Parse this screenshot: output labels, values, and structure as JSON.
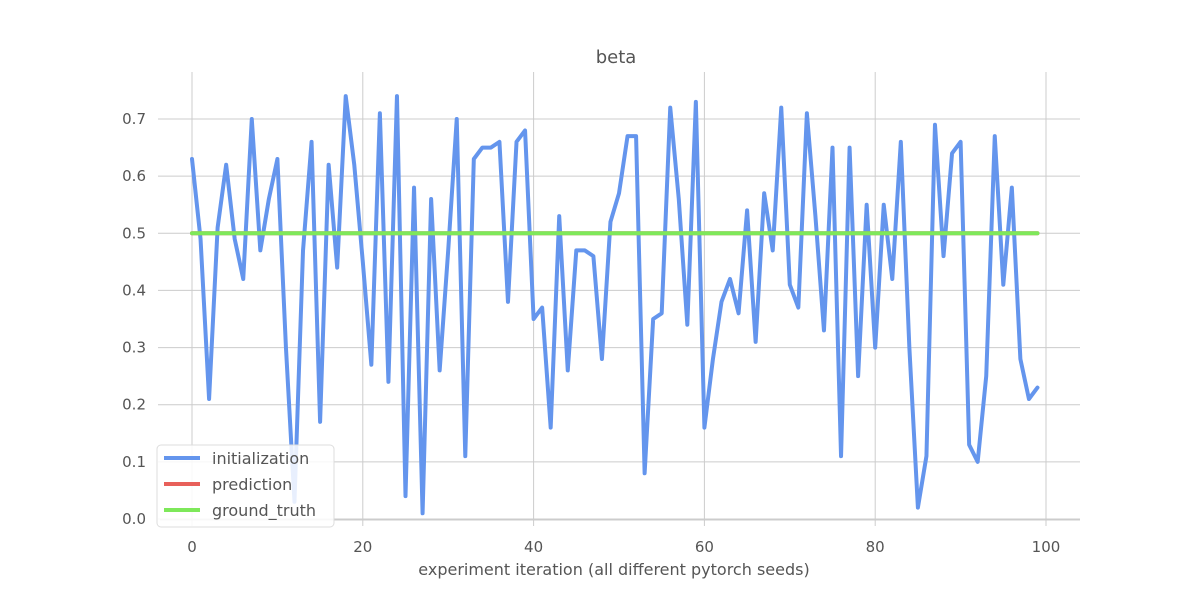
{
  "chart_data": {
    "type": "line",
    "title": "beta",
    "xlabel": "experiment iteration (all different pytorch seeds)",
    "ylabel": "",
    "xlim": [
      -4,
      104
    ],
    "ylim": [
      -0.02,
      0.78
    ],
    "xticks": [
      0,
      20,
      40,
      60,
      80,
      100
    ],
    "xtick_labels": [
      "0",
      "20",
      "40",
      "60",
      "80",
      "100"
    ],
    "yticks": [
      0.0,
      0.1,
      0.2,
      0.3,
      0.4,
      0.5,
      0.6,
      0.7
    ],
    "ytick_labels": [
      "0.0",
      "0.1",
      "0.2",
      "0.3",
      "0.4",
      "0.5",
      "0.6",
      "0.7"
    ],
    "grid": true,
    "legend_position": "bottom-left",
    "series": [
      {
        "name": "initialization",
        "color": "#6495ED",
        "values": [
          0.63,
          0.49,
          0.21,
          0.51,
          0.62,
          0.49,
          0.42,
          0.7,
          0.47,
          0.56,
          0.63,
          0.3,
          0.03,
          0.47,
          0.66,
          0.17,
          0.62,
          0.44,
          0.74,
          0.62,
          0.45,
          0.27,
          0.71,
          0.24,
          0.74,
          0.04,
          0.58,
          0.01,
          0.56,
          0.26,
          0.47,
          0.7,
          0.11,
          0.63,
          0.65,
          0.65,
          0.66,
          0.38,
          0.66,
          0.68,
          0.35,
          0.37,
          0.16,
          0.53,
          0.26,
          0.47,
          0.47,
          0.46,
          0.28,
          0.52,
          0.57,
          0.67,
          0.67,
          0.08,
          0.35,
          0.36,
          0.72,
          0.56,
          0.34,
          0.73,
          0.16,
          0.28,
          0.38,
          0.42,
          0.36,
          0.54,
          0.31,
          0.57,
          0.47,
          0.72,
          0.41,
          0.37,
          0.71,
          0.53,
          0.33,
          0.65,
          0.11,
          0.65,
          0.25,
          0.55,
          0.3,
          0.55,
          0.42,
          0.66,
          0.3,
          0.02,
          0.11,
          0.69,
          0.46,
          0.64,
          0.66,
          0.13,
          0.1,
          0.25,
          0.67,
          0.41,
          0.58,
          0.28,
          0.21,
          0.23
        ]
      },
      {
        "name": "prediction",
        "color": "#E8605A",
        "values": [
          0.5,
          0.5,
          0.5,
          0.5,
          0.5,
          0.5,
          0.5,
          0.5,
          0.5,
          0.5,
          0.5,
          0.5,
          0.5,
          0.5,
          0.5,
          0.5,
          0.5,
          0.5,
          0.5,
          0.5,
          0.5,
          0.5,
          0.5,
          0.5,
          0.5,
          0.5,
          0.5,
          0.5,
          0.5,
          0.5,
          0.5,
          0.5,
          0.5,
          0.5,
          0.5,
          0.5,
          0.5,
          0.5,
          0.5,
          0.5,
          0.5,
          0.5,
          0.5,
          0.5,
          0.5,
          0.5,
          0.5,
          0.5,
          0.5,
          0.5,
          0.5,
          0.5,
          0.5,
          0.5,
          0.5,
          0.5,
          0.5,
          0.5,
          0.5,
          0.5,
          0.5,
          0.5,
          0.5,
          0.5,
          0.5,
          0.5,
          0.5,
          0.5,
          0.5,
          0.5,
          0.5,
          0.5,
          0.5,
          0.5,
          0.5,
          0.5,
          0.5,
          0.5,
          0.5,
          0.5,
          0.5,
          0.5,
          0.5,
          0.5,
          0.5,
          0.5,
          0.5,
          0.5,
          0.5,
          0.5,
          0.5,
          0.5,
          0.5,
          0.5,
          0.5,
          0.5,
          0.5,
          0.5,
          0.5,
          0.5
        ]
      },
      {
        "name": "ground_truth",
        "color": "#7EE85A",
        "values": [
          0.5,
          0.5,
          0.5,
          0.5,
          0.5,
          0.5,
          0.5,
          0.5,
          0.5,
          0.5,
          0.5,
          0.5,
          0.5,
          0.5,
          0.5,
          0.5,
          0.5,
          0.5,
          0.5,
          0.5,
          0.5,
          0.5,
          0.5,
          0.5,
          0.5,
          0.5,
          0.5,
          0.5,
          0.5,
          0.5,
          0.5,
          0.5,
          0.5,
          0.5,
          0.5,
          0.5,
          0.5,
          0.5,
          0.5,
          0.5,
          0.5,
          0.5,
          0.5,
          0.5,
          0.5,
          0.5,
          0.5,
          0.5,
          0.5,
          0.5,
          0.5,
          0.5,
          0.5,
          0.5,
          0.5,
          0.5,
          0.5,
          0.5,
          0.5,
          0.5,
          0.5,
          0.5,
          0.5,
          0.5,
          0.5,
          0.5,
          0.5,
          0.5,
          0.5,
          0.5,
          0.5,
          0.5,
          0.5,
          0.5,
          0.5,
          0.5,
          0.5,
          0.5,
          0.5,
          0.5,
          0.5,
          0.5,
          0.5,
          0.5,
          0.5,
          0.5,
          0.5,
          0.5,
          0.5,
          0.5,
          0.5,
          0.5,
          0.5,
          0.5,
          0.5,
          0.5,
          0.5,
          0.5,
          0.5,
          0.5
        ]
      }
    ]
  }
}
